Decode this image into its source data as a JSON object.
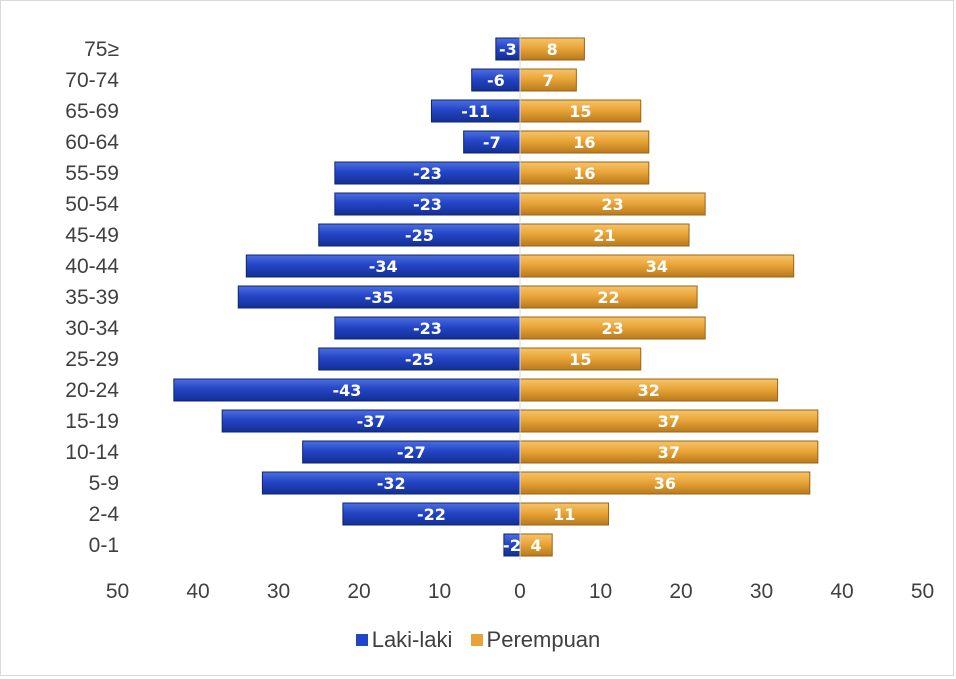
{
  "chart_data": {
    "type": "bar",
    "orientation": "horizontal",
    "categories": [
      "75≥",
      "70-74",
      "65-69",
      "60-64",
      "55-59",
      "50-54",
      "45-49",
      "40-44",
      "35-39",
      "30-34",
      "25-29",
      "20-24",
      "15-19",
      "10-14",
      "5-9",
      "2-4",
      "0-1"
    ],
    "series": [
      {
        "name": "Laki-laki",
        "color": "#1f45c9",
        "values": [
          -3,
          -6,
          -11,
          -7,
          -23,
          -23,
          -25,
          -34,
          -35,
          -23,
          -25,
          -43,
          -37,
          -27,
          -32,
          -22,
          -2
        ]
      },
      {
        "name": "Perempuan",
        "color": "#e8a33a",
        "values": [
          8,
          7,
          15,
          16,
          16,
          23,
          21,
          34,
          22,
          23,
          15,
          32,
          37,
          37,
          36,
          11,
          4
        ]
      }
    ],
    "x_tick_labels": [
      "50",
      "40",
      "30",
      "20",
      "10",
      "0",
      "10",
      "20",
      "30",
      "40",
      "50"
    ],
    "xlim": [
      -50,
      50
    ],
    "legend_position": "bottom",
    "grid": false
  }
}
